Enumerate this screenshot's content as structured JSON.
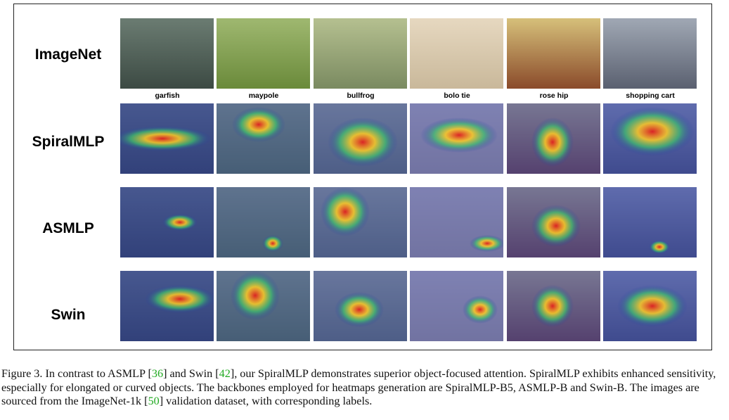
{
  "rows": [
    {
      "label": "ImageNet"
    },
    {
      "label": "SpiralMLP"
    },
    {
      "label": "ASMLP"
    },
    {
      "label": "Swin"
    }
  ],
  "columns": [
    {
      "label": "garfish"
    },
    {
      "label": "maypole"
    },
    {
      "label": "bullfrog"
    },
    {
      "label": "bolo tie"
    },
    {
      "label": "rose hip"
    },
    {
      "label": "shopping cart"
    }
  ],
  "caption": {
    "prefix": "Figure 3. In contrast to ASMLP [",
    "ref1": "36",
    "part2": "] and Swin [",
    "ref2": "42",
    "part3": "], our SpiralMLP demonstrates superior object-focused attention. SpiralMLP exhibits enhanced sensitivity, especially for elongated or curved objects. The backbones employed for heatmaps generation are SpiralMLP-B5, ASMLP-B and Swin-B. The images are sourced from the ImageNet-1k [",
    "ref3": "50",
    "suffix": "] validation dataset, with corresponding labels."
  }
}
